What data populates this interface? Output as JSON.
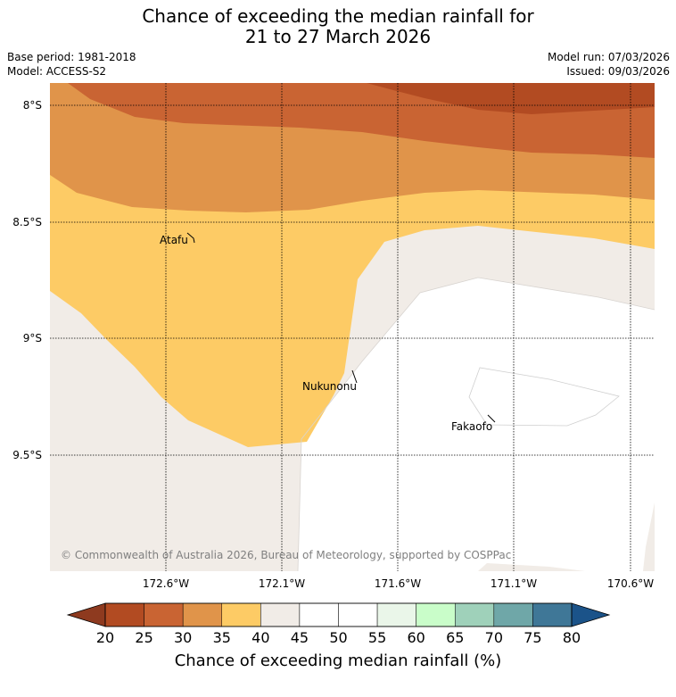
{
  "title": {
    "line1": "Chance of exceeding the median rainfall for",
    "line2": "21 to 27 March 2026"
  },
  "meta": {
    "base_period": "Base period: 1981-2018",
    "model": "Model: ACCESS-S2",
    "model_run": "Model run: 07/03/2026",
    "issued": "Issued: 09/03/2026"
  },
  "map": {
    "lat_labels": [
      "8°S",
      "8.5°S",
      "9°S",
      "9.5°S"
    ],
    "lon_labels": [
      "172.6°W",
      "172.1°W",
      "171.6°W",
      "171.1°W",
      "170.6°W"
    ],
    "places": [
      "Atafu",
      "Nukunonu",
      "Fakaofo"
    ],
    "copyright": "© Commonwealth of Australia 2026, Bureau of Meteorology, supported by COSPPac"
  },
  "colorbar": {
    "ticks": [
      "20",
      "25",
      "30",
      "35",
      "40",
      "45",
      "50",
      "55",
      "60",
      "65",
      "70",
      "75",
      "80"
    ],
    "colors": [
      "#b24b22",
      "#c96433",
      "#e0944a",
      "#fdcb65",
      "#f1ece7",
      "#ffffff",
      "#ffffff",
      "#eaf6e9",
      "#c9fdc9",
      "#9fd1ba",
      "#6fa7a8",
      "#3f7797"
    ],
    "under_color": "#8e3a1f",
    "over_color": "#1b5389",
    "label": "Chance of exceeding median rainfall (%)"
  },
  "legend_colors": {
    "c20": "#b24b22",
    "c25": "#c96433",
    "c30": "#e0944a",
    "c35": "#fdcb65",
    "c40": "#f1ece7"
  }
}
